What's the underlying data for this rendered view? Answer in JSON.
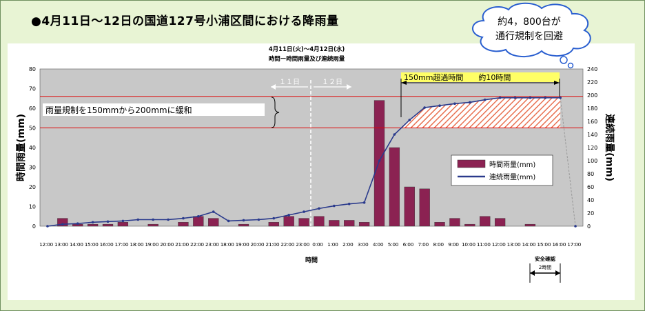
{
  "header": {
    "title": "●4月11日〜12日の国道127号小浦区間における降雨量"
  },
  "callout": {
    "line1": "約4，800台が",
    "line2": "通行規制を回避"
  },
  "colors": {
    "bar": "#8b2252",
    "line": "#2a3a8c",
    "plot_bg": "#c8c8c8",
    "threshold": "#e00000",
    "hatch": "#e87050",
    "highlight": "#ffff66"
  },
  "chart_data": {
    "type": "bar",
    "title": "4月11日(火)〜4月12日(水)",
    "subtitle": "時間ー時間雨量及び連続雨量",
    "xlabel": "時間",
    "ylabel_left": "時間雨量(mm)",
    "ylabel_right": "連続雨量(mm)",
    "ylim_left": [
      0,
      80
    ],
    "ylim_right": [
      0,
      240
    ],
    "yticks_left": [
      0,
      10,
      20,
      30,
      40,
      50,
      60,
      70,
      80
    ],
    "yticks_right": [
      0,
      20,
      40,
      60,
      80,
      100,
      120,
      140,
      160,
      180,
      200,
      220,
      240
    ],
    "grid": false,
    "legend_position": "right-middle",
    "categories": [
      "12:00",
      "13:00",
      "14:00",
      "15:00",
      "16:00",
      "17:00",
      "18:00",
      "19:00",
      "20:00",
      "21:00",
      "22:00",
      "23:00",
      "18:00",
      "19:00",
      "20:00",
      "21:00",
      "22:00",
      "23:00",
      "0:00",
      "1:00",
      "2:00",
      "3:00",
      "4:00",
      "5:00",
      "6:00",
      "7:00",
      "8:00",
      "9:00",
      "10:00",
      "11:00",
      "12:00",
      "13:00",
      "14:00",
      "15:00",
      "16:00",
      "17:00"
    ],
    "series": [
      {
        "name": "時間雨量(mm)",
        "type": "bar",
        "axis": "left",
        "values": [
          0,
          4,
          1,
          1,
          1,
          2,
          0,
          1,
          0,
          2,
          5,
          4,
          0,
          1,
          0,
          2,
          5,
          4,
          5,
          3,
          3,
          2,
          64,
          40,
          20,
          19,
          2,
          4,
          1,
          5,
          4,
          0,
          1,
          0,
          0,
          0
        ]
      },
      {
        "name": "連続雨量(mm)",
        "type": "line",
        "axis": "right",
        "values": [
          0,
          3,
          4,
          6,
          7,
          8,
          10,
          10,
          10,
          12,
          15,
          22,
          8,
          9,
          10,
          12,
          17,
          22,
          27,
          31,
          34,
          36,
          100,
          140,
          162,
          181,
          184,
          187,
          189,
          193,
          196,
          196,
          196,
          196,
          196,
          0
        ]
      }
    ],
    "annotations": {
      "day1": "１１日",
      "day2": "１２日",
      "threshold_note": "雨量規制を150mmから200mmに緩和",
      "threshold_old": 50,
      "threshold_new": 66,
      "exceed_note": "150mm超過時間　　約10時間",
      "safety_note_1": "安全確認",
      "safety_note_2": "2時間"
    }
  }
}
